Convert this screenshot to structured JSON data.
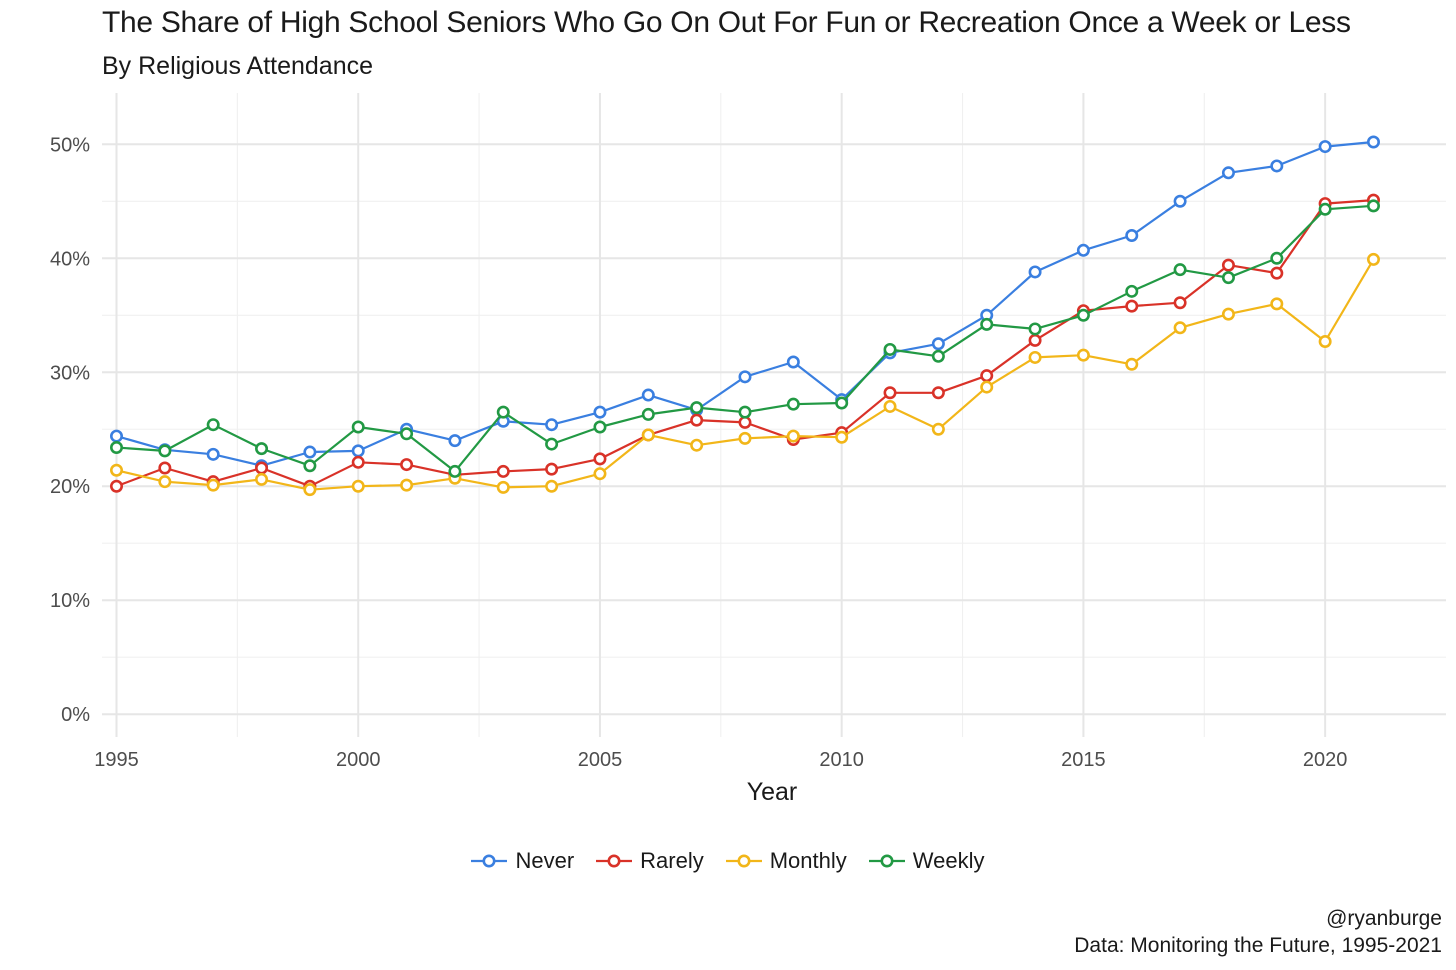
{
  "chart_data": {
    "type": "line",
    "title": "The Share of High School Seniors Who Go On Out For Fun or Recreation Once a Week or Less",
    "subtitle": "By Religious Attendance",
    "xlabel": "Year",
    "ylabel": "",
    "xlim": [
      1994.7,
      2022.5
    ],
    "ylim": [
      -0.02,
      0.545
    ],
    "x_ticks": [
      1995,
      2000,
      2005,
      2010,
      2015,
      2020
    ],
    "y_ticks": [
      0,
      0.1,
      0.2,
      0.3,
      0.4,
      0.5
    ],
    "y_tick_labels": [
      "0%",
      "10%",
      "20%",
      "30%",
      "40%",
      "50%"
    ],
    "grid": true,
    "legend_position": "bottom",
    "x": [
      1995,
      1996,
      1997,
      1998,
      1999,
      2000,
      2001,
      2002,
      2003,
      2004,
      2005,
      2006,
      2007,
      2008,
      2009,
      2010,
      2011,
      2012,
      2013,
      2014,
      2015,
      2016,
      2017,
      2018,
      2019,
      2020,
      2021
    ],
    "series": [
      {
        "name": "Never",
        "color": "#3a7fe0",
        "values": [
          0.244,
          0.232,
          0.228,
          0.218,
          0.23,
          0.231,
          0.25,
          0.24,
          0.257,
          0.254,
          0.265,
          0.28,
          0.267,
          0.296,
          0.309,
          0.276,
          0.317,
          0.325,
          0.35,
          0.388,
          0.407,
          0.42,
          0.45,
          0.475,
          0.481,
          0.498,
          0.502
        ]
      },
      {
        "name": "Rarely",
        "color": "#d93228",
        "values": [
          0.2,
          0.216,
          0.204,
          0.216,
          0.2,
          0.221,
          0.219,
          0.21,
          0.213,
          0.215,
          0.224,
          0.245,
          0.258,
          0.256,
          0.241,
          0.247,
          0.282,
          0.282,
          0.297,
          0.328,
          0.354,
          0.358,
          0.361,
          0.394,
          0.387,
          0.448,
          0.451
        ]
      },
      {
        "name": "Monthly",
        "color": "#f2b619",
        "values": [
          0.214,
          0.204,
          0.201,
          0.206,
          0.197,
          0.2,
          0.201,
          0.207,
          0.199,
          0.2,
          0.211,
          0.245,
          0.236,
          0.242,
          0.244,
          0.243,
          0.27,
          0.25,
          0.287,
          0.313,
          0.315,
          0.307,
          0.339,
          0.351,
          0.36,
          0.327,
          0.399
        ]
      },
      {
        "name": "Weekly",
        "color": "#229944",
        "values": [
          0.234,
          0.231,
          0.254,
          0.233,
          0.218,
          0.252,
          0.246,
          0.213,
          0.265,
          0.237,
          0.252,
          0.263,
          0.269,
          0.265,
          0.272,
          0.273,
          0.32,
          0.314,
          0.342,
          0.338,
          0.35,
          0.371,
          0.39,
          0.383,
          0.4,
          0.443,
          0.446
        ]
      }
    ]
  },
  "caption": {
    "handle": "@ryanburge",
    "source": "Data: Monitoring the Future, 1995-2021"
  }
}
